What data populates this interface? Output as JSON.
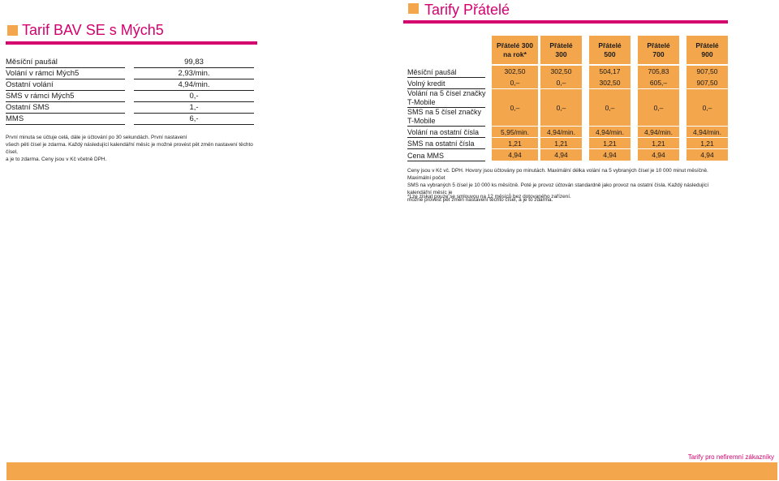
{
  "left": {
    "title": "Tarif BAV SE s Mých5",
    "rows": [
      {
        "label": "Měsíční paušál",
        "value": "99,83"
      },
      {
        "label": "Volání v rámci Mých5",
        "value": "2,93/min."
      },
      {
        "label": "Ostatní volání",
        "value": "4,94/min."
      },
      {
        "label": "SMS v rámci Mých5",
        "value": "0,-"
      },
      {
        "label": "Ostatní SMS",
        "value": "1,-"
      },
      {
        "label": "MMS",
        "value": "6,-"
      }
    ],
    "note_lines": [
      "První minuta se účtuje celá, dále je účtování po 30 sekundách. První nastavení",
      "všech pěti čísel je zdarma. Každý následující kalendářní měsíc je možné provést pět změn nastavení těchto čísel,",
      "a je to zdarma. Ceny jsou v Kč včetně DPH."
    ]
  },
  "right": {
    "title": "Tarify Přátelé",
    "headers": [
      {
        "line1": "Přátelé 300",
        "line2": "na rok*"
      },
      {
        "line1": "Přátelé",
        "line2": "300"
      },
      {
        "line1": "Přátelé",
        "line2": "500"
      },
      {
        "line1": "Přátelé",
        "line2": "700"
      },
      {
        "line1": "Přátelé",
        "line2": "900"
      }
    ],
    "rows": [
      {
        "label": "Měsíční paušál",
        "values": [
          "302,50",
          "302,50",
          "504,17",
          "705,83",
          "907,50"
        ]
      },
      {
        "label": "Volný kredit",
        "values": [
          "0,–",
          "0,–",
          "302,50",
          "605,–",
          "907,50"
        ]
      },
      {
        "label1a": "Volání na 5 čísel značky",
        "label1b": "T-Mobile",
        "label2a": "SMS na 5 čísel značky",
        "label2b": "T-Mobile",
        "values": [
          "0,–",
          "0,–",
          "0,–",
          "0,–",
          "0,–"
        ]
      },
      {
        "label": "Volání na ostatní čísla",
        "values": [
          "5,95/min.",
          "4,94/min.",
          "4,94/min.",
          "4,94/min.",
          "4,94/min."
        ]
      },
      {
        "label": "SMS na ostatní čísla",
        "values": [
          "1,21",
          "1,21",
          "1,21",
          "1,21",
          "1,21"
        ]
      },
      {
        "label": "Cena MMS",
        "values": [
          "4,94",
          "4,94",
          "4,94",
          "4,94",
          "4,94"
        ]
      }
    ],
    "note_lines": [
      "Ceny jsou v Kč vč. DPH. Hovory jsou účtovány po minutách. Maximální délka volání na 5 vybraných čísel je 10 000 minut měsíčně. Maximální počet",
      "SMS na vybraných 5 čísel je 10 000 ks měsíčně. Poté je provoz účtován standardně jako provoz na ostatní čísla. Každý následující kalendářní měsíc je",
      "možné provést pět změn nastavení těchto čísel, a je to zdarma."
    ],
    "footnote": "*Lze získat pouze se smlouvou na 12 měsíců bez dotovaného zařízení."
  },
  "footer": "Tarify pro nefiremní zákazníky",
  "colors": {
    "accent": "#d4006e",
    "cell": "#f4a64c"
  }
}
